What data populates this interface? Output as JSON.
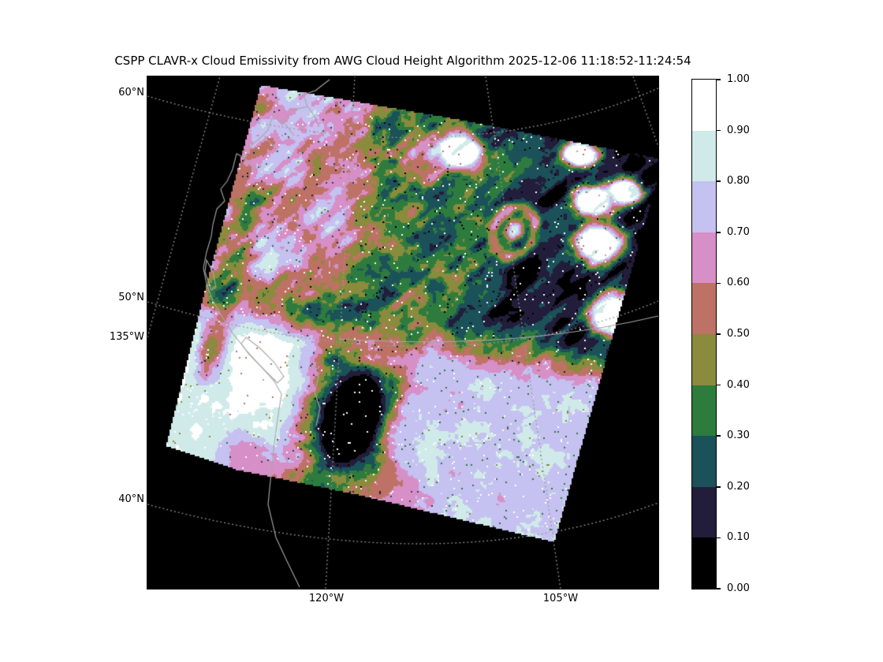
{
  "chart_data": {
    "type": "heatmap",
    "title": "CSPP CLAVR-x Cloud Emissivity from AWG Cloud Height Algorithm 2025-12-06 11:18:52-11:24:54",
    "variable": "cloud emissivity",
    "value_range": [
      0.0,
      1.0
    ],
    "x_tick_labels": [
      "120°W",
      "105°W"
    ],
    "y_tick_labels": [
      "60°N",
      "50°N",
      "135°W",
      "40°N"
    ],
    "gridlines": {
      "parallels_labels": [
        "60°N",
        "50°N",
        "40°N"
      ],
      "meridians_labels": [
        "135°W",
        "120°W",
        "105°W"
      ],
      "style": "dotted",
      "color": "#9b9b9b"
    },
    "colorbar": {
      "side": "right",
      "range": [
        0.0,
        1.0
      ],
      "tick_labels": [
        "0.00",
        "0.10",
        "0.20",
        "0.30",
        "0.40",
        "0.50",
        "0.60",
        "0.70",
        "0.80",
        "0.90",
        "1.00"
      ],
      "bin_colors_low_to_high": [
        "#000000",
        "#221d3a",
        "#1b5159",
        "#2e7b3e",
        "#8a8b3c",
        "#bd7265",
        "#d78fc7",
        "#c5c1f0",
        "#d0eae9",
        "#ffffff"
      ]
    },
    "map": {
      "background": "#000000",
      "coastline_color": "#a8a8a8",
      "border_color": "#a8a8a8",
      "features": [
        "rotated rectangular satellite swath of emissivity data over western North America",
        "pink high-emissivity cloud mass over the British Columbia coast (upper left of swath)",
        "dark teal and green low-emissivity field in upper right of swath",
        "bright white saturated cloud areas in lower left and bottom of swath",
        "black near-zero emissivity hole near center of swath",
        "small pink ring feature with bright core in upper right area"
      ]
    }
  }
}
